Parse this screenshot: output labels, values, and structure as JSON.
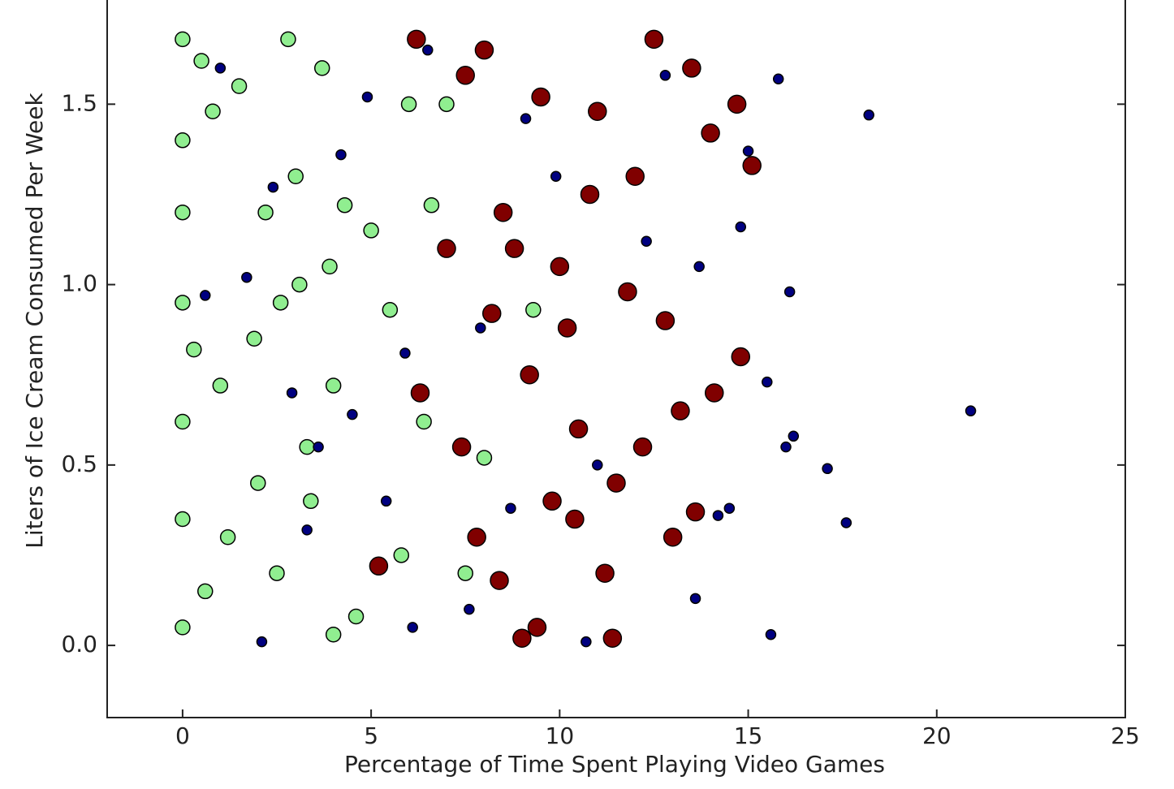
{
  "chart_data": {
    "type": "scatter",
    "xlabel": "Percentage of Time Spent Playing Video Games",
    "ylabel": "Liters of Ice Cream Consumed Per Week",
    "xlim": [
      -2,
      25
    ],
    "ylim": [
      -0.2,
      1.8
    ],
    "xticks": [
      0,
      5,
      10,
      15,
      20,
      25
    ],
    "yticks": [
      {
        "value": 0,
        "label": "0.0"
      },
      0.5,
      {
        "value": 1,
        "label": "1.0"
      },
      1.5
    ],
    "series": [
      {
        "color": "#90ee90",
        "x": [
          0,
          0,
          0,
          0,
          0,
          0,
          0,
          0.5,
          0.8,
          1.2,
          1.5,
          1.9,
          2.2,
          2.5,
          2.8,
          3.1,
          3.4,
          3.7,
          4.0,
          4.3,
          4.6,
          5.0,
          5.5,
          6.0,
          6.4,
          7.0,
          7.5,
          1.0,
          2.0,
          3.0,
          4.0,
          0.3,
          0.6,
          2.6,
          3.3,
          3.9,
          5.8,
          6.6,
          8.0,
          9.3
        ],
        "values": [
          1.68,
          1.4,
          1.2,
          0.95,
          0.62,
          0.35,
          0.05,
          1.62,
          1.48,
          0.3,
          1.55,
          0.85,
          1.2,
          0.2,
          1.68,
          1.0,
          0.4,
          1.6,
          0.72,
          1.22,
          0.08,
          1.15,
          0.93,
          1.5,
          0.62,
          1.5,
          0.2,
          0.72,
          0.45,
          1.3,
          0.03,
          0.82,
          0.15,
          0.95,
          0.55,
          1.05,
          0.25,
          1.22,
          0.52,
          0.93
        ]
      },
      {
        "color": "#800000",
        "x": [
          6.2,
          7.0,
          7.5,
          8.0,
          8.5,
          9.0,
          9.5,
          10.0,
          10.5,
          11.0,
          11.5,
          12.0,
          12.5,
          13.0,
          13.5,
          14.0,
          14.7,
          15.1,
          8.2,
          9.2,
          10.2,
          11.2,
          12.2,
          13.2,
          7.8,
          8.8,
          9.8,
          10.8,
          11.8,
          12.8,
          14.1,
          5.2,
          6.3,
          7.4,
          8.4,
          9.4,
          10.4,
          11.4,
          13.6,
          14.8
        ],
        "values": [
          1.68,
          1.1,
          1.58,
          1.65,
          1.2,
          0.02,
          1.52,
          1.05,
          0.6,
          1.48,
          0.45,
          1.3,
          1.68,
          0.3,
          1.6,
          1.42,
          1.5,
          1.33,
          0.92,
          0.75,
          0.88,
          0.2,
          0.55,
          0.65,
          0.3,
          1.1,
          0.4,
          1.25,
          0.98,
          0.9,
          0.7,
          0.22,
          0.7,
          0.55,
          0.18,
          0.05,
          0.35,
          0.02,
          0.37,
          0.8
        ]
      },
      {
        "color": "#000080",
        "x": [
          18.2,
          20.9,
          17.6,
          17.1,
          16.1,
          15.8,
          15.6,
          15.5,
          16.2,
          14.8,
          14.5,
          13.7,
          13.6,
          12.8,
          12.3,
          1.0,
          2.1,
          3.3,
          4.2,
          5.4,
          6.5,
          7.6,
          8.7,
          9.9,
          11.0,
          0.6,
          1.7,
          2.9,
          4.9,
          6.1,
          7.9,
          9.1,
          10.7,
          3.6,
          2.4,
          5.9,
          4.5,
          15.0,
          14.2,
          16.0
        ],
        "values": [
          1.47,
          0.65,
          0.34,
          0.49,
          0.98,
          1.57,
          0.03,
          0.73,
          0.58,
          1.16,
          0.38,
          1.05,
          0.13,
          1.58,
          1.12,
          1.6,
          0.01,
          0.32,
          1.36,
          0.4,
          1.65,
          0.1,
          0.38,
          1.3,
          0.5,
          0.97,
          1.02,
          0.7,
          1.52,
          0.05,
          0.88,
          1.46,
          0.01,
          0.55,
          1.27,
          0.81,
          0.64,
          1.37,
          0.36,
          0.55
        ]
      }
    ]
  }
}
